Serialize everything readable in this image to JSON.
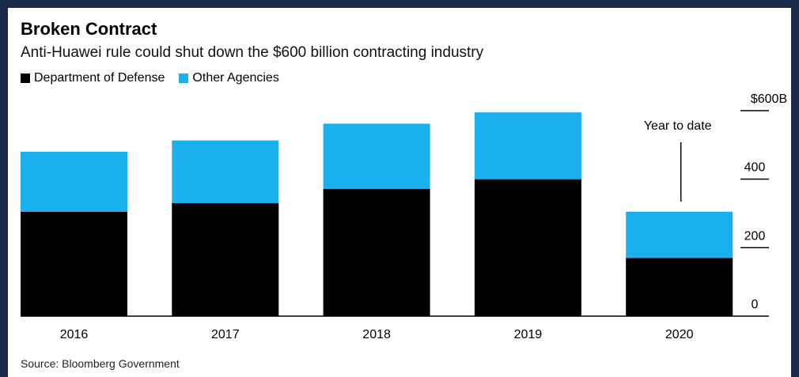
{
  "title": "Broken Contract",
  "subtitle": "Anti-Huawei rule could shut down the $600 billion contracting industry",
  "source": "Source: Bloomberg Government",
  "colors": {
    "dod": "#000000",
    "other": "#1ab0ee",
    "axis": "#000000"
  },
  "chart_data": {
    "type": "bar",
    "stacked": true,
    "categories": [
      "2016",
      "2017",
      "2018",
      "2019",
      "2020"
    ],
    "series": [
      {
        "name": "Department of Defense",
        "values": [
          305,
          330,
          372,
          400,
          170
        ]
      },
      {
        "name": "Other Agencies",
        "values": [
          175,
          183,
          190,
          195,
          135
        ]
      }
    ],
    "y_ticks": [
      0,
      200,
      400,
      600
    ],
    "y_tick_labels": [
      "0",
      "200",
      "400",
      "$600B"
    ],
    "ylim": [
      0,
      600
    ],
    "annotation": {
      "text": "Year to date",
      "category": "2020"
    },
    "legend_position": "top-left",
    "grid": false
  }
}
